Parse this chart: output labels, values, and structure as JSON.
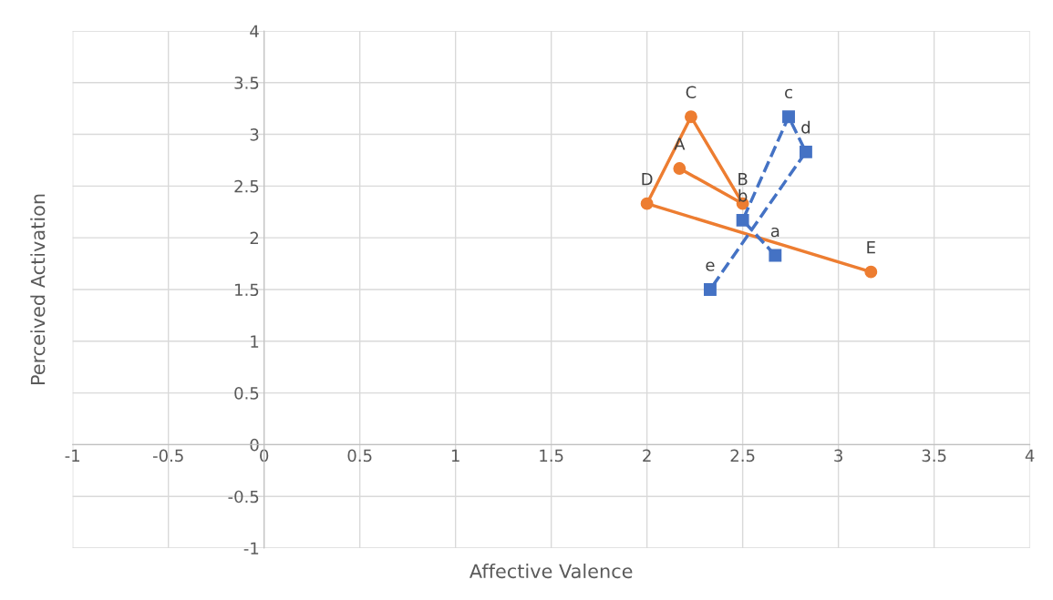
{
  "chart_data": {
    "type": "line",
    "xlabel": "Affective Valence",
    "ylabel": "Perceived Activation",
    "xlim": [
      -1,
      4
    ],
    "ylim": [
      -1,
      4
    ],
    "xticks": [
      -1,
      -0.5,
      0,
      0.5,
      1,
      1.5,
      2,
      2.5,
      3,
      3.5,
      4
    ],
    "yticks": [
      -1,
      -0.5,
      0,
      0.5,
      1,
      1.5,
      2,
      2.5,
      3,
      3.5,
      4
    ],
    "grid": true,
    "series": [
      {
        "color": "#ed7d31",
        "marker": "circle",
        "line_style": "solid",
        "x": [
          2.17,
          2.5,
          2.23,
          2.0,
          3.17
        ],
        "values": [
          2.67,
          2.33,
          3.17,
          2.33,
          1.67
        ]
      },
      {
        "color": "#4472c4",
        "marker": "square",
        "line_style": "dashed",
        "x": [
          2.67,
          2.5,
          2.74,
          2.83,
          2.33
        ],
        "values": [
          1.83,
          2.17,
          3.17,
          2.83,
          1.5
        ]
      }
    ],
    "annotations": [
      {
        "text": "A",
        "x": 2.17,
        "y": 2.67
      },
      {
        "text": "B",
        "x": 2.5,
        "y": 2.33
      },
      {
        "text": "C",
        "x": 2.23,
        "y": 3.17
      },
      {
        "text": "D",
        "x": 2.0,
        "y": 2.33
      },
      {
        "text": "E",
        "x": 3.17,
        "y": 1.67
      },
      {
        "text": "a",
        "x": 2.67,
        "y": 1.83
      },
      {
        "text": "b",
        "x": 2.5,
        "y": 2.17
      },
      {
        "text": "c",
        "x": 2.74,
        "y": 3.17
      },
      {
        "text": "d",
        "x": 2.83,
        "y": 2.83
      },
      {
        "text": "e",
        "x": 2.33,
        "y": 1.5
      }
    ]
  }
}
